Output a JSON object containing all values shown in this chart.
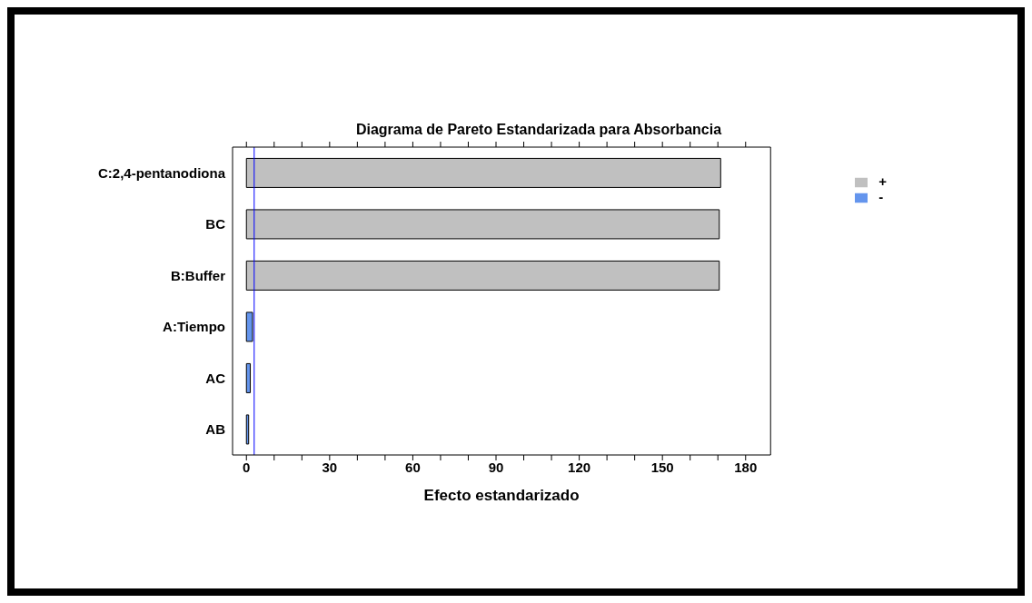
{
  "chart_data": {
    "type": "bar",
    "orientation": "horizontal",
    "stacked": true,
    "title": "Diagrama de Pareto Estandarizada para Absorbancia",
    "xlabel": "Efecto estandarizado",
    "categories": [
      "C:2,4-pentanodiona",
      "BC",
      "B:Buffer",
      "A:Tiempo",
      "AC",
      "AB"
    ],
    "series": [
      {
        "name": "+",
        "color": "#c0c0c0",
        "values": [
          171,
          170.5,
          170.5,
          null,
          null,
          null
        ]
      },
      {
        "name": "-",
        "color": "#6495ed",
        "values": [
          null,
          null,
          null,
          2.2,
          1.4,
          0.8
        ]
      }
    ],
    "xlim": [
      -5,
      189
    ],
    "xticks": [
      0,
      {
        "value": 10,
        "label": null
      },
      {
        "value": 20,
        "label": null
      },
      30,
      {
        "value": 40,
        "label": null
      },
      {
        "value": 50,
        "label": null
      },
      60,
      {
        "value": 70,
        "label": null
      },
      {
        "value": 80,
        "label": null
      },
      90,
      {
        "value": 100,
        "label": null
      },
      {
        "value": 110,
        "label": null
      },
      120,
      {
        "value": 130,
        "label": null
      },
      {
        "value": 140,
        "label": null
      },
      150,
      {
        "value": 160,
        "label": null
      },
      {
        "value": 170,
        "label": null
      },
      180
    ],
    "ref_lines": [
      {
        "axis": "x",
        "value": 2.8,
        "color": "#0000ff"
      }
    ],
    "legend": "top right",
    "grid": false
  }
}
